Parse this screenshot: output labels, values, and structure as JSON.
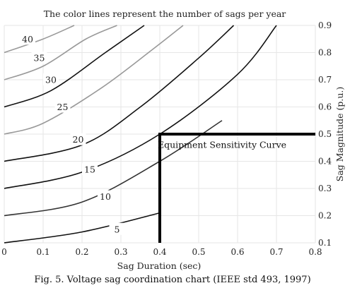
{
  "chart_data": {
    "type": "line",
    "title": "The color lines represent the number of sags per year",
    "xlabel": "Sag Duration (sec)",
    "ylabel": "Sag Magnitude (p.u.)",
    "xlim": [
      0,
      0.8
    ],
    "ylim": [
      0.1,
      0.9
    ],
    "x_ticks": [
      0,
      0.1,
      0.2,
      0.3,
      0.4,
      0.5,
      0.6,
      0.7,
      0.8
    ],
    "x_tick_labels": [
      "0",
      "0.1",
      "0.2",
      "0.3",
      "0.4",
      "0.5",
      "0.6",
      "0.7",
      "0.8"
    ],
    "y_ticks": [
      0.1,
      0.2,
      0.3,
      0.4,
      0.5,
      0.6,
      0.7,
      0.8,
      0.9
    ],
    "y_tick_labels": [
      "0.1",
      "0.2",
      "0.3",
      "0.4",
      "0.5",
      "0.6",
      "0.7",
      "0.8",
      "0.9"
    ],
    "grid": true,
    "caption": "Fig. 5.  Voltage sag coordination chart (IEEE std 493, 1997)",
    "series": [
      {
        "label": "5",
        "color": "#111111",
        "x": [
          0.0,
          0.2,
          0.4
        ],
        "y": [
          0.1,
          0.14,
          0.21
        ],
        "label_at": [
          0.29,
          0.15
        ]
      },
      {
        "label": "10",
        "color": "#333333",
        "x": [
          0.0,
          0.2,
          0.4,
          0.56
        ],
        "y": [
          0.2,
          0.25,
          0.4,
          0.55
        ],
        "label_at": [
          0.26,
          0.27
        ]
      },
      {
        "label": "15",
        "color": "#111111",
        "x": [
          0.0,
          0.2,
          0.4,
          0.6,
          0.7
        ],
        "y": [
          0.3,
          0.36,
          0.5,
          0.72,
          0.9
        ],
        "label_at": [
          0.22,
          0.37
        ]
      },
      {
        "label": "20",
        "color": "#111111",
        "x": [
          0.0,
          0.2,
          0.35,
          0.5,
          0.59
        ],
        "y": [
          0.4,
          0.46,
          0.6,
          0.78,
          0.9
        ],
        "label_at": [
          0.19,
          0.48
        ]
      },
      {
        "label": "25",
        "color": "#999999",
        "x": [
          0.0,
          0.1,
          0.25,
          0.38,
          0.46
        ],
        "y": [
          0.5,
          0.54,
          0.67,
          0.81,
          0.9
        ],
        "label_at": [
          0.15,
          0.6
        ]
      },
      {
        "label": "30",
        "color": "#111111",
        "x": [
          0.0,
          0.12,
          0.26,
          0.36
        ],
        "y": [
          0.6,
          0.66,
          0.8,
          0.9
        ],
        "label_at": [
          0.12,
          0.7
        ]
      },
      {
        "label": "35",
        "color": "#999999",
        "x": [
          0.0,
          0.1,
          0.21,
          0.29
        ],
        "y": [
          0.7,
          0.75,
          0.85,
          0.9
        ],
        "label_at": [
          0.09,
          0.78
        ]
      },
      {
        "label": "40",
        "color": "#999999",
        "x": [
          0.0,
          0.1,
          0.18
        ],
        "y": [
          0.8,
          0.85,
          0.9
        ],
        "label_at": [
          0.06,
          0.85
        ]
      }
    ],
    "equipment_curve": {
      "label": "Equipment Sensitivity Curve",
      "color": "#000000",
      "x": [
        0.4,
        0.4,
        0.8
      ],
      "y": [
        0.1,
        0.5,
        0.5
      ],
      "label_at": [
        0.56,
        0.46
      ]
    }
  }
}
